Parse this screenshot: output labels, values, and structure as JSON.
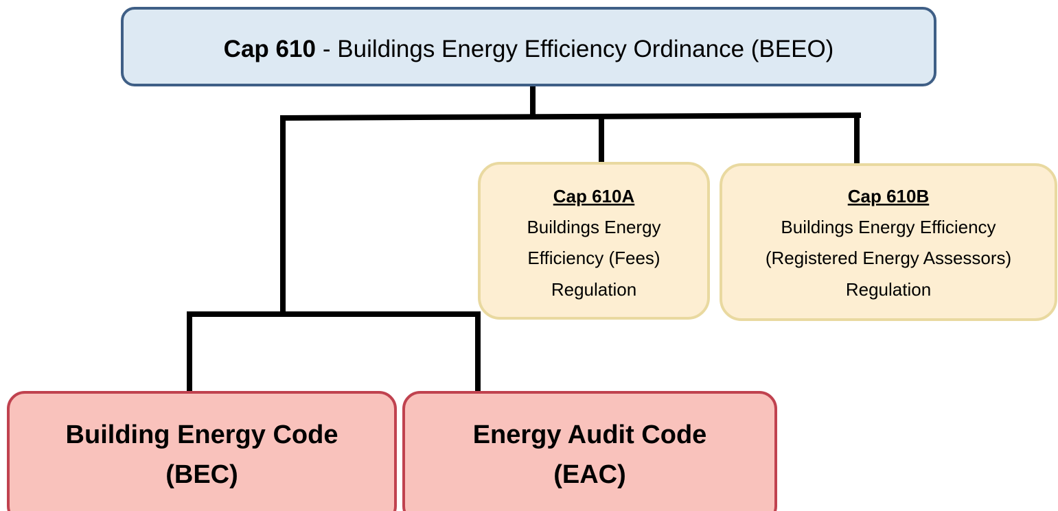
{
  "root": {
    "bold": "Cap 610",
    "text": "- Buildings Energy Efficiency Ordinance (BEEO)"
  },
  "nodes": [
    {
      "title": "Cap 610A",
      "lines": [
        "Buildings Energy",
        "Efficiency (Fees)",
        "Regulation"
      ]
    },
    {
      "title": "Cap 610B",
      "lines": [
        "Buildings Energy Efficiency",
        "(Registered Energy Assessors)",
        "Regulation"
      ]
    },
    {
      "lines": [
        "Building Energy Code",
        "(BEC)"
      ]
    },
    {
      "lines": [
        "Energy Audit Code",
        "(EAC)"
      ]
    }
  ]
}
